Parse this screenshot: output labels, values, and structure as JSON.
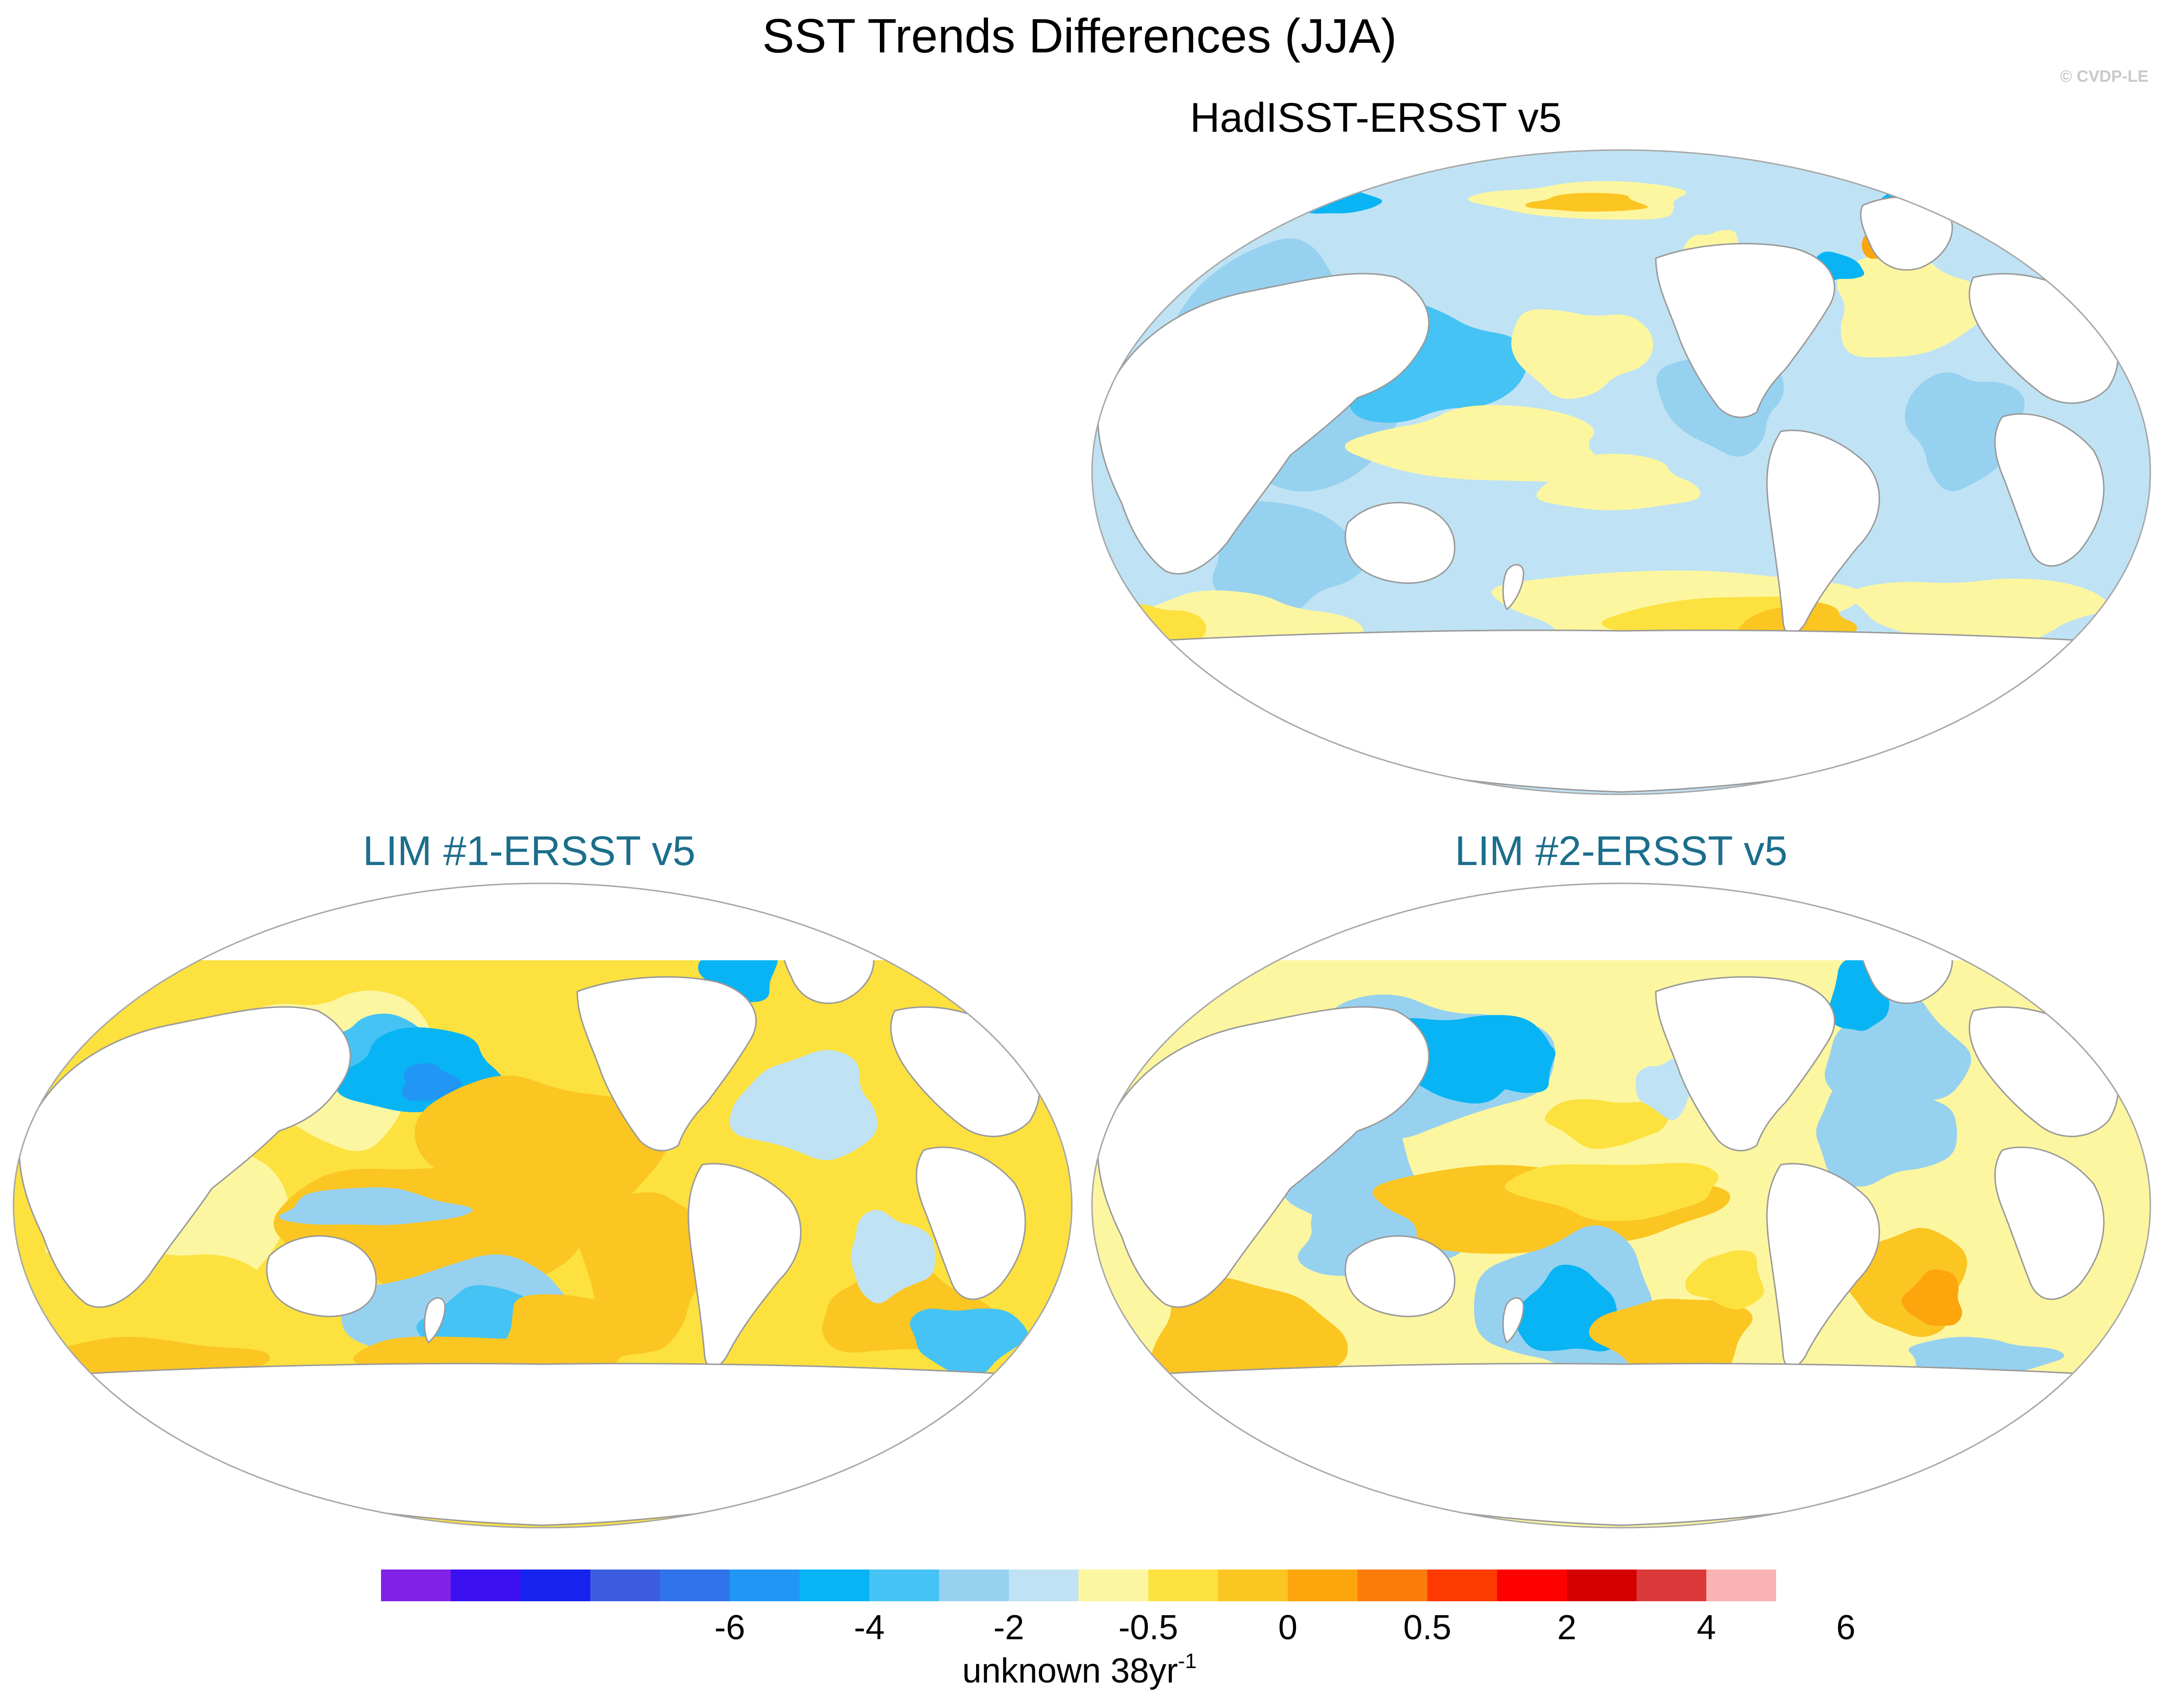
{
  "title": "SST Trends Differences (JJA)",
  "credit": "© CVDP-LE",
  "panels": [
    {
      "title": "HadISST-ERSST v5",
      "pattern": "hadisst"
    },
    {
      "title": "LIM #1-ERSST v5",
      "pattern": "lim1"
    },
    {
      "title": "LIM #2-ERSST v5",
      "pattern": "lim2"
    }
  ],
  "colorbar": {
    "colors": [
      "#8021e8",
      "#3a0ff0",
      "#1622ee",
      "#3c5ce0",
      "#2f74ea",
      "#2196f5",
      "#08b4f4",
      "#45c3f4",
      "#97d1f0",
      "#bfe3f4",
      "#fdf6a0",
      "#fce13f",
      "#fbc522",
      "#fca50d",
      "#fc7b0a",
      "#fd3a00",
      "#fe0000",
      "#d40000",
      "#dc393b",
      "#fab3b3"
    ],
    "ticks": [
      "-6",
      "-4",
      "-2",
      "-0.5",
      "0",
      "0.5",
      "2",
      "4",
      "6"
    ],
    "units_base": "unknown 38yr",
    "units_exp": "-1"
  }
}
